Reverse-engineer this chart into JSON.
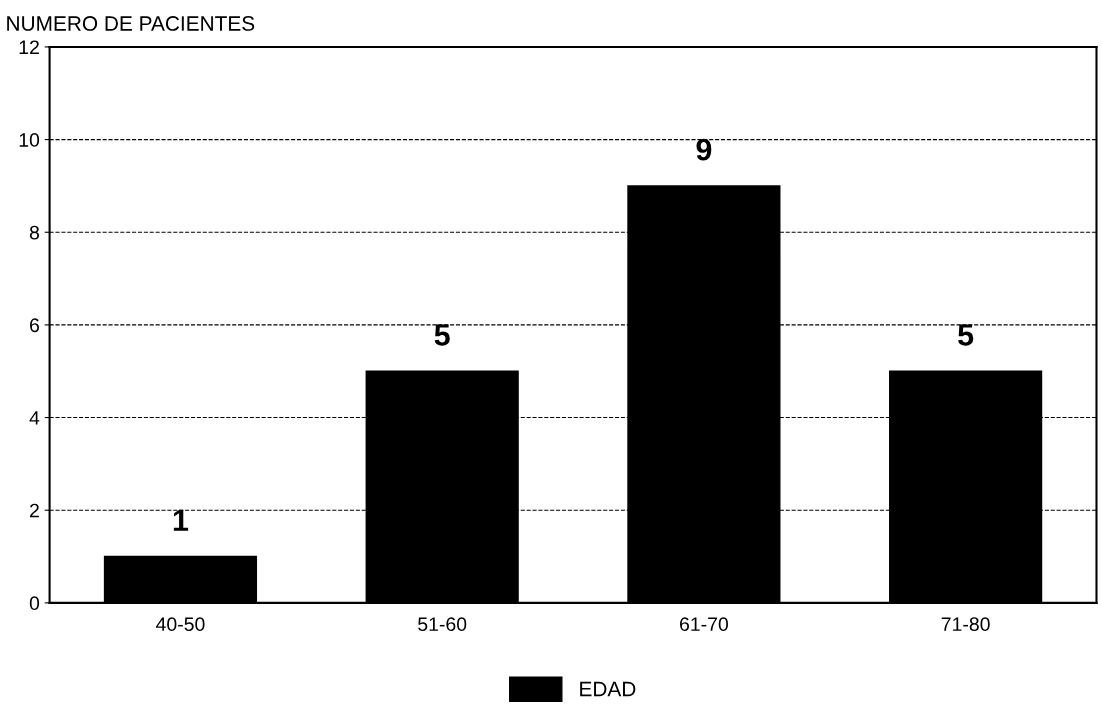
{
  "chart_data": {
    "type": "bar",
    "ylabel": "NUMERO DE PACIENTES",
    "categories": [
      "40-50",
      "51-60",
      "61-70",
      "71-80"
    ],
    "series": [
      {
        "name": "EDAD",
        "color": "#000000",
        "values": [
          1,
          5,
          9,
          5
        ]
      }
    ],
    "ylim": [
      0,
      12
    ],
    "yticks": [
      0,
      2,
      4,
      6,
      8,
      10,
      12
    ],
    "grid": "y",
    "legend": "bottom",
    "data_labels": true
  }
}
